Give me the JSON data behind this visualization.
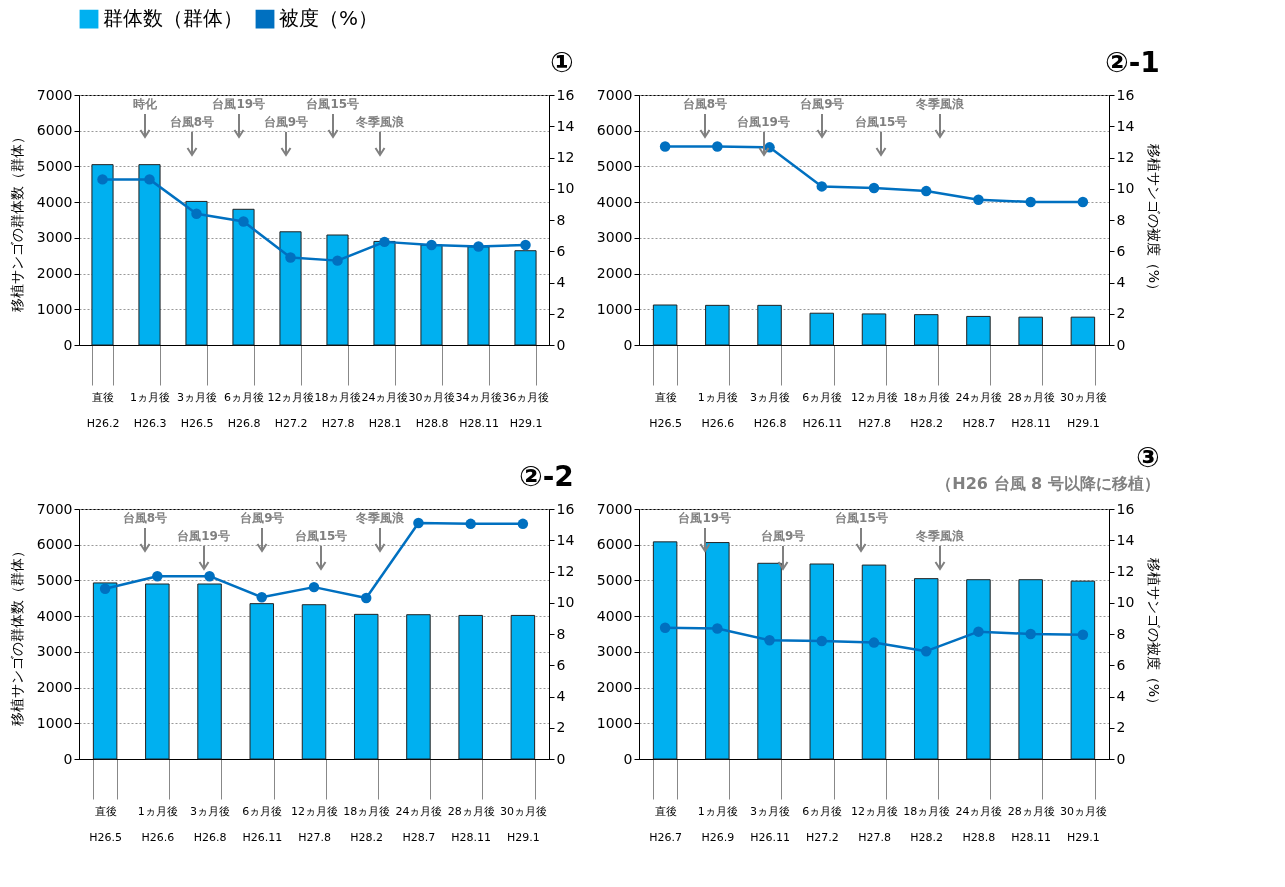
{
  "chart_data": [
    {
      "type": "bar",
      "title": "①",
      "ylabel": "移植サンゴの群体数（群体）",
      "categories": [
        "直後\nH26.2",
        "1ヵ月後\nH26.3",
        "3ヵ月後\nH26.5",
        "6ヵ月後\nH26.8",
        "12ヵ月後\nH27.2",
        "18ヵ月後\nH27.8",
        "24ヵ月後\nH28.1",
        "30ヵ月後\nH28.8",
        "34ヵ月後\nH28.11",
        "36ヵ月後\nH29.1"
      ],
      "series": [
        {
          "color": "#00b0f0",
          "values": [
            5050,
            5050,
            4020,
            3800,
            3170,
            3080,
            2900,
            2800,
            2750,
            2640
          ]
        },
        {
          "type": "line",
          "axis": "y2",
          "color": "#0070c0",
          "values": [
            10.6,
            10.6,
            8.4,
            7.9,
            5.6,
            5.4,
            6.6,
            6.4,
            6.3,
            6.4
          ]
        }
      ],
      "ylim": [
        0,
        7000
      ],
      "yticks": [
        0,
        1000,
        2000,
        3000,
        4000,
        5000,
        6000,
        7000
      ],
      "y2lim": [
        0,
        16
      ],
      "y2ticks": [
        0,
        2,
        4,
        6,
        8,
        10,
        12,
        14,
        16
      ],
      "grid": "y",
      "marker": "circle",
      "annotations": [
        "時化",
        "台風8号",
        "台風19号",
        "台風9号",
        "台風15号",
        "冬季風浪"
      ]
    },
    {
      "type": "bar",
      "title": "②-1",
      "y2label": "移植サンゴの被度（%）",
      "categories": [
        "直後\nH26.5",
        "1ヵ月後\nH26.6",
        "3ヵ月後\nH26.8",
        "6ヵ月後\nH26.11",
        "12ヵ月後\nH27.8",
        "18ヵ月後\nH28.2",
        "24ヵ月後\nH28.7",
        "28ヵ月後\nH28.11",
        "30ヵ月後\nH29.1"
      ],
      "series": [
        {
          "name": "群体数（群体）",
          "color": "#00b0f0",
          "values": [
            1120,
            1110,
            1110,
            890,
            870,
            850,
            800,
            780,
            780
          ]
        },
        {
          "type": "line",
          "name": "被度（%）",
          "axis": "y2",
          "color": "#0070c0",
          "values": [
            12.7,
            12.7,
            12.65,
            10.15,
            10.05,
            9.85,
            9.3,
            9.15,
            9.15
          ]
        }
      ],
      "ylim": [
        0,
        7000
      ],
      "yticks": [
        0,
        1000,
        2000,
        3000,
        4000,
        5000,
        6000,
        7000
      ],
      "y2lim": [
        0,
        16
      ],
      "y2ticks": [
        0,
        2,
        4,
        6,
        8,
        10,
        12,
        14,
        16
      ],
      "grid": "y",
      "marker": "circle",
      "legend": "top",
      "annotations": [
        "台風8号",
        "台風19号",
        "台風9号",
        "台風15号",
        "冬季風浪"
      ]
    },
    {
      "type": "bar",
      "title": "②-2",
      "ylabel": "移植サンゴの群体数（群体）",
      "categories": [
        "直後\nH26.5",
        "1ヵ月後\nH26.6",
        "3ヵ月後\nH26.8",
        "6ヵ月後\nH26.11",
        "12ヵ月後\nH27.8",
        "18ヵ月後\nH28.2",
        "24ヵ月後\nH28.7",
        "28ヵ月後\nH28.11",
        "30ヵ月後\nH29.1"
      ],
      "series": [
        {
          "color": "#00b0f0",
          "values": [
            4930,
            4900,
            4900,
            4350,
            4320,
            4050,
            4040,
            4020,
            4020
          ]
        },
        {
          "type": "line",
          "axis": "y2",
          "color": "#0070c0",
          "values": [
            10.9,
            11.7,
            11.7,
            10.35,
            11.0,
            10.3,
            15.1,
            15.05,
            15.05
          ]
        }
      ],
      "ylim": [
        0,
        7000
      ],
      "yticks": [
        0,
        1000,
        2000,
        3000,
        4000,
        5000,
        6000,
        7000
      ],
      "y2lim": [
        0,
        16
      ],
      "y2ticks": [
        0,
        2,
        4,
        6,
        8,
        10,
        12,
        14,
        16
      ],
      "grid": "y",
      "marker": "circle",
      "annotations": [
        "台風8号",
        "台風19号",
        "台風9号",
        "台風15号",
        "冬季風浪"
      ]
    },
    {
      "type": "bar",
      "title": "③",
      "subtitle": "（H26  台風 8 号以降に移植）",
      "y2label": "移植サンゴの被度（%）",
      "categories": [
        "直後\nH26.7",
        "1ヵ月後\nH26.9",
        "3ヵ月後\nH26.11",
        "6ヵ月後\nH27.2",
        "12ヵ月後\nH27.8",
        "18ヵ月後\nH28.2",
        "24ヵ月後\nH28.8",
        "28ヵ月後\nH28.11",
        "30ヵ月後\nH29.1"
      ],
      "series": [
        {
          "color": "#00b0f0",
          "values": [
            6080,
            6060,
            5480,
            5460,
            5430,
            5050,
            5020,
            5020,
            4980
          ]
        },
        {
          "type": "line",
          "axis": "y2",
          "color": "#0070c0",
          "values": [
            8.4,
            8.35,
            7.6,
            7.55,
            7.45,
            6.9,
            8.15,
            8.0,
            7.95
          ]
        }
      ],
      "ylim": [
        0,
        7000
      ],
      "yticks": [
        0,
        1000,
        2000,
        3000,
        4000,
        5000,
        6000,
        7000
      ],
      "y2lim": [
        0,
        16
      ],
      "y2ticks": [
        0,
        2,
        4,
        6,
        8,
        10,
        12,
        14,
        16
      ],
      "grid": "y",
      "marker": "circle",
      "annotations": [
        "台風19号",
        "台風9号",
        "台風15号",
        "冬季風浪"
      ]
    }
  ]
}
